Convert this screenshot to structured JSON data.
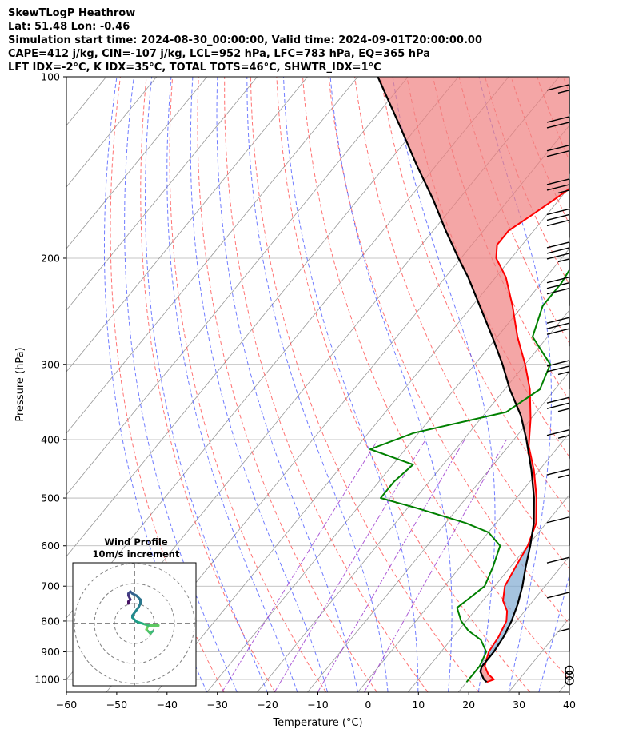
{
  "header": {
    "line1": "SkewTLogP Heathrow",
    "line2": "Lat: 51.48   Lon: -0.46",
    "line3": "Simulation start time: 2024-08-30_00:00:00, Valid time: 2024-09-01T20:00:00.00",
    "line4": "CAPE=412 j/kg, CIN=-107 j/kg, LCL=952 hPa, LFC=783 hPa, EQ=365 hPa",
    "line5": "LFT IDX=-2°C, K IDX=35°C, TOTAL TOTS=46°C, SHWTR_IDX=1°C"
  },
  "hodograph": {
    "title": "Wind Profile",
    "subtitle": "10m/s increment"
  },
  "colors": {
    "temperature": "#ff0000",
    "dewpoint": "#008000",
    "parcel": "#000000",
    "cape_fill": "#7fa9d1",
    "cin_fill": "#f08080",
    "dry_adiabat": "#ff4444",
    "moist_adiabat": "#3344ff",
    "mixing_ratio": "#9933cc",
    "isotherm": "#999999"
  },
  "chart_data": {
    "type": "line",
    "title": "SkewTLogP Heathrow",
    "xlabel": "Temperature (°C)",
    "ylabel": "Pressure (hPa)",
    "xlim": [
      -60,
      40
    ],
    "ylim": [
      1050,
      100
    ],
    "x_ticks": [
      -60,
      -50,
      -40,
      -30,
      -20,
      -10,
      0,
      10,
      20,
      30,
      40
    ],
    "x_tick_labels": [
      "−60",
      "−50",
      "−40",
      "−30",
      "−20",
      "−10",
      "0",
      "10",
      "20",
      "30",
      "40"
    ],
    "y_ticks": [
      1000,
      900,
      800,
      700,
      600,
      500,
      400,
      300,
      200,
      100
    ],
    "y_tick_labels": [
      "1000",
      "900",
      "800",
      "700",
      "600",
      "500",
      "400",
      "300",
      "200",
      "100"
    ],
    "grid": true,
    "series": [
      {
        "name": "temperature",
        "points": [
          [
            1010,
            24
          ],
          [
            1000,
            25
          ],
          [
            980,
            23
          ],
          [
            950,
            21
          ],
          [
            900,
            19.5
          ],
          [
            850,
            19
          ],
          [
            800,
            18
          ],
          [
            770,
            16.5
          ],
          [
            740,
            14
          ],
          [
            700,
            12
          ],
          [
            650,
            11
          ],
          [
            600,
            10
          ],
          [
            550,
            8
          ],
          [
            500,
            4
          ],
          [
            450,
            -1
          ],
          [
            410,
            -6
          ],
          [
            370,
            -10
          ],
          [
            330,
            -15
          ],
          [
            300,
            -20
          ],
          [
            270,
            -26
          ],
          [
            240,
            -32
          ],
          [
            215,
            -38
          ],
          [
            200,
            -43
          ],
          [
            190,
            -45
          ],
          [
            180,
            -45
          ],
          [
            170,
            -43
          ],
          [
            160,
            -41
          ],
          [
            150,
            -39
          ],
          [
            140,
            -38
          ],
          [
            130,
            -37
          ],
          [
            120,
            -36
          ],
          [
            110,
            -35
          ],
          [
            100,
            -35
          ]
        ]
      },
      {
        "name": "dewpoint",
        "points": [
          [
            1010,
            20
          ],
          [
            1000,
            20
          ],
          [
            950,
            20
          ],
          [
            900,
            19
          ],
          [
            860,
            16
          ],
          [
            830,
            12
          ],
          [
            800,
            9
          ],
          [
            760,
            6
          ],
          [
            730,
            7
          ],
          [
            700,
            8
          ],
          [
            650,
            6.5
          ],
          [
            600,
            4.5
          ],
          [
            570,
            0
          ],
          [
            550,
            -6
          ],
          [
            520,
            -18
          ],
          [
            500,
            -27
          ],
          [
            470,
            -27
          ],
          [
            440,
            -26
          ],
          [
            415,
            -37
          ],
          [
            390,
            -31
          ],
          [
            360,
            -16
          ],
          [
            330,
            -13
          ],
          [
            300,
            -15
          ],
          [
            270,
            -23
          ],
          [
            240,
            -26
          ],
          [
            220,
            -26
          ],
          [
            200,
            -27
          ],
          [
            185,
            -25
          ],
          [
            170,
            -29
          ],
          [
            155,
            -39
          ],
          [
            140,
            -41
          ],
          [
            130,
            -41
          ],
          [
            120,
            -40
          ],
          [
            110,
            -38
          ],
          [
            100,
            -35
          ]
        ]
      },
      {
        "name": "parcel",
        "points": [
          [
            1010,
            24
          ],
          [
            1000,
            23
          ],
          [
            970,
            21
          ],
          [
            952,
            20.5
          ],
          [
            900,
            20.5
          ],
          [
            850,
            20
          ],
          [
            800,
            19
          ],
          [
            750,
            17.5
          ],
          [
            700,
            15.5
          ],
          [
            650,
            13
          ],
          [
            600,
            10.5
          ],
          [
            550,
            7.5
          ],
          [
            500,
            3.5
          ],
          [
            450,
            -1.5
          ],
          [
            400,
            -7.5
          ],
          [
            365,
            -12.5
          ],
          [
            330,
            -19
          ],
          [
            300,
            -24.5
          ],
          [
            270,
            -31
          ],
          [
            240,
            -38.5
          ],
          [
            215,
            -45.5
          ],
          [
            200,
            -50.5
          ],
          [
            180,
            -57.5
          ],
          [
            160,
            -65
          ],
          [
            140,
            -74
          ],
          [
            120,
            -84
          ],
          [
            100,
            -96
          ]
        ]
      }
    ],
    "annotations": {
      "LCL_hPa": 952,
      "LFC_hPa": 783,
      "EQ_hPa": 365,
      "CAPE_jkg": 412,
      "CIN_jkg": -107
    },
    "wind_barbs": [
      {
        "p": 1005,
        "speed_kt": 0
      },
      {
        "p": 985,
        "speed_kt": 0
      },
      {
        "p": 965,
        "speed_kt": 0
      },
      {
        "p": 900,
        "speed_kt": 5
      },
      {
        "p": 800,
        "speed_kt": 10
      },
      {
        "p": 700,
        "speed_kt": 10
      },
      {
        "p": 600,
        "speed_kt": 10
      },
      {
        "p": 500,
        "speed_kt": 15
      },
      {
        "p": 430,
        "speed_kt": 15
      },
      {
        "p": 380,
        "speed_kt": 25
      },
      {
        "p": 330,
        "speed_kt": 25
      },
      {
        "p": 280,
        "speed_kt": 30
      },
      {
        "p": 240,
        "speed_kt": 30
      },
      {
        "p": 210,
        "speed_kt": 35
      },
      {
        "p": 185,
        "speed_kt": 30
      },
      {
        "p": 165,
        "speed_kt": 25
      },
      {
        "p": 145,
        "speed_kt": 20
      },
      {
        "p": 130,
        "speed_kt": 20
      },
      {
        "p": 115,
        "speed_kt": 15
      }
    ],
    "hodograph_uv": [
      [
        9,
        -4
      ],
      [
        8,
        -5
      ],
      [
        6,
        -3
      ],
      [
        7,
        -1
      ],
      [
        9,
        -1
      ],
      [
        11,
        -1
      ],
      [
        12,
        -1
      ],
      [
        7,
        -1
      ],
      [
        4,
        0
      ],
      [
        1,
        1
      ],
      [
        -1,
        3
      ],
      [
        -1,
        4
      ],
      [
        2,
        8
      ],
      [
        3,
        10
      ],
      [
        3,
        12
      ],
      [
        1,
        14
      ],
      [
        -1,
        15
      ],
      [
        -2,
        16
      ],
      [
        -3,
        15
      ],
      [
        -3,
        14
      ],
      [
        -2,
        12
      ],
      [
        -3,
        11
      ],
      [
        -3,
        10
      ]
    ],
    "hodograph_rings_ms": [
      10,
      20,
      30
    ]
  }
}
